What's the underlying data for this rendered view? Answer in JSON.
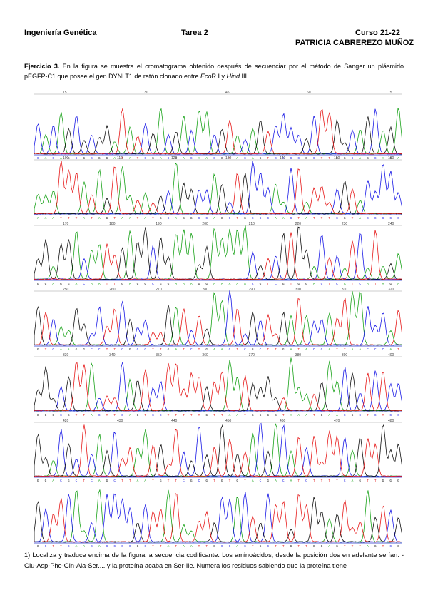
{
  "header": {
    "course": "Ingeniería Genética",
    "task": "Tarea 2",
    "year": "Curso 21-22",
    "author": "PATRICIA CABREREZO MUÑOZ"
  },
  "intro": {
    "label": "Ejercicio 3.",
    "text_1": " En la figura se muestra el cromatograma obtenido después de secuenciar por el método de Sanger un plásmido pEGFP-C1 que posee el gen DYNLT1 de ratón clonado entre ",
    "enzyme_1": "Eco",
    "enzyme_1_suffix": "R I",
    "text_2": " y ",
    "enzyme_2": "Hind",
    "enzyme_2_suffix": " III."
  },
  "chromatogram": {
    "colors": {
      "A": "#1aa31a",
      "C": "#1a1ae6",
      "G": "#111111",
      "T": "#e61a1a"
    },
    "rows": [
      {
        "ticks": [
          "15",
          "30",
          "45",
          "60",
          "75"
        ]
      },
      {
        "ticks": [
          "100",
          "110",
          "120",
          "130",
          "140",
          "150",
          "160"
        ]
      },
      {
        "ticks": [
          "170",
          "180",
          "190",
          "200",
          "210",
          "220",
          "230",
          "240"
        ]
      },
      {
        "ticks": [
          "250",
          "260",
          "270",
          "280",
          "290",
          "300",
          "310",
          "320"
        ]
      },
      {
        "ticks": [
          "330",
          "340",
          "350",
          "360",
          "370",
          "380",
          "390",
          "400"
        ]
      },
      {
        "ticks": [
          "420",
          "430",
          "440",
          "450",
          "460",
          "470",
          "480"
        ]
      },
      {
        "ticks": []
      }
    ]
  },
  "question": {
    "text": "1) Localiza y traduce encima de la figura la secuencia codificante. Los aminoácidos, desde la posición dos en adelante serían: -Glu-Asp-Phe-Gln-Ala-Ser.... y la proteína acaba en Ser-Ile. Numera los residuos sabiendo que la proteína tiene"
  }
}
